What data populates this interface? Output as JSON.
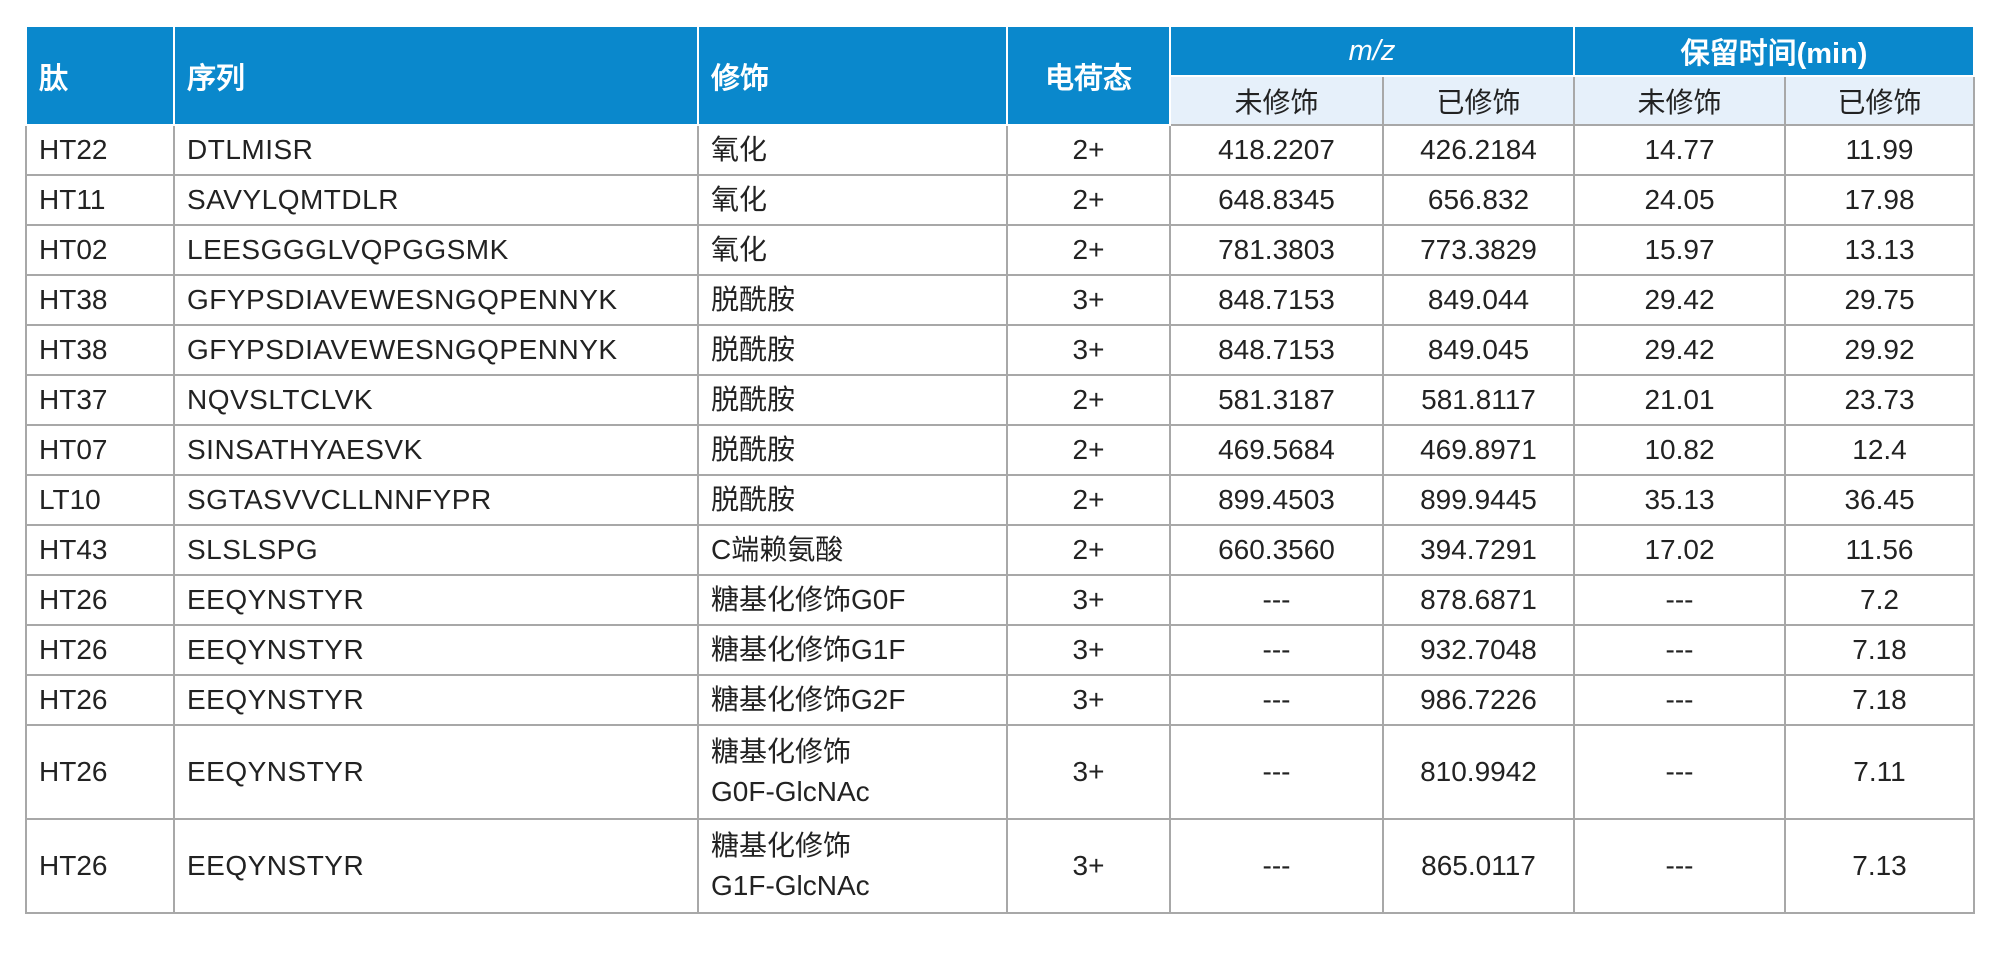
{
  "headers": {
    "peptide": "肽",
    "sequence": "序列",
    "modification": "修饰",
    "charge": "电荷态",
    "mz": "m/z",
    "retention": "保留时间(min)",
    "unmodified": "未修饰",
    "modified": "已修饰"
  },
  "rows": [
    {
      "peptide": "HT22",
      "sequence": "DTLMISR",
      "mod": [
        "氧化"
      ],
      "charge": "2+",
      "mz_unmod": "418.2207",
      "mz_mod": "426.2184",
      "rt_unmod": "14.77",
      "rt_mod": "11.99"
    },
    {
      "peptide": "HT11",
      "sequence": "SAVYLQMTDLR",
      "mod": [
        "氧化"
      ],
      "charge": "2+",
      "mz_unmod": "648.8345",
      "mz_mod": "656.832",
      "rt_unmod": "24.05",
      "rt_mod": "17.98"
    },
    {
      "peptide": "HT02",
      "sequence": "LEESGGGLVQPGGSMK",
      "mod": [
        "氧化"
      ],
      "charge": "2+",
      "mz_unmod": "781.3803",
      "mz_mod": "773.3829",
      "rt_unmod": "15.97",
      "rt_mod": "13.13"
    },
    {
      "peptide": "HT38",
      "sequence": "GFYPSDIAVEWESNGQPENNYK",
      "mod": [
        "脱酰胺"
      ],
      "charge": "3+",
      "mz_unmod": "848.7153",
      "mz_mod": "849.044",
      "rt_unmod": "29.42",
      "rt_mod": "29.75"
    },
    {
      "peptide": "HT38",
      "sequence": "GFYPSDIAVEWESNGQPENNYK",
      "mod": [
        "脱酰胺"
      ],
      "charge": "3+",
      "mz_unmod": "848.7153",
      "mz_mod": "849.045",
      "rt_unmod": "29.42",
      "rt_mod": "29.92"
    },
    {
      "peptide": "HT37",
      "sequence": "NQVSLTCLVK",
      "mod": [
        "脱酰胺"
      ],
      "charge": "2+",
      "mz_unmod": "581.3187",
      "mz_mod": "581.8117",
      "rt_unmod": "21.01",
      "rt_mod": "23.73"
    },
    {
      "peptide": "HT07",
      "sequence": "SINSATHYAESVK",
      "mod": [
        "脱酰胺"
      ],
      "charge": "2+",
      "mz_unmod": "469.5684",
      "mz_mod": "469.8971",
      "rt_unmod": "10.82",
      "rt_mod": "12.4"
    },
    {
      "peptide": "LT10",
      "sequence": "SGTASVVCLLNNFYPR",
      "mod": [
        "脱酰胺"
      ],
      "charge": "2+",
      "mz_unmod": "899.4503",
      "mz_mod": "899.9445",
      "rt_unmod": "35.13",
      "rt_mod": "36.45"
    },
    {
      "peptide": "HT43",
      "sequence": "SLSLSPG",
      "mod": [
        "C端赖氨酸"
      ],
      "charge": "2+",
      "mz_unmod": "660.3560",
      "mz_mod": "394.7291",
      "rt_unmod": "17.02",
      "rt_mod": "11.56"
    },
    {
      "peptide": "HT26",
      "sequence": "EEQYNSTYR",
      "mod": [
        "糖基化修饰G0F"
      ],
      "charge": "3+",
      "mz_unmod": "---",
      "mz_mod": "878.6871",
      "rt_unmod": "---",
      "rt_mod": "7.2"
    },
    {
      "peptide": "HT26",
      "sequence": "EEQYNSTYR",
      "mod": [
        "糖基化修饰G1F"
      ],
      "charge": "3+",
      "mz_unmod": "---",
      "mz_mod": "932.7048",
      "rt_unmod": "---",
      "rt_mod": "7.18"
    },
    {
      "peptide": "HT26",
      "sequence": "EEQYNSTYR",
      "mod": [
        "糖基化修饰G2F"
      ],
      "charge": "3+",
      "mz_unmod": "---",
      "mz_mod": "986.7226",
      "rt_unmod": "---",
      "rt_mod": "7.18"
    },
    {
      "peptide": "HT26",
      "sequence": "EEQYNSTYR",
      "mod": [
        "糖基化修饰",
        "G0F-GlcNAc"
      ],
      "charge": "3+",
      "mz_unmod": "---",
      "mz_mod": "810.9942",
      "rt_unmod": "---",
      "rt_mod": "7.11"
    },
    {
      "peptide": "HT26",
      "sequence": "EEQYNSTYR",
      "mod": [
        "糖基化修饰",
        "G1F-GlcNAc"
      ],
      "charge": "3+",
      "mz_unmod": "---",
      "mz_mod": "865.0117",
      "rt_unmod": "---",
      "rt_mod": "7.13"
    }
  ]
}
